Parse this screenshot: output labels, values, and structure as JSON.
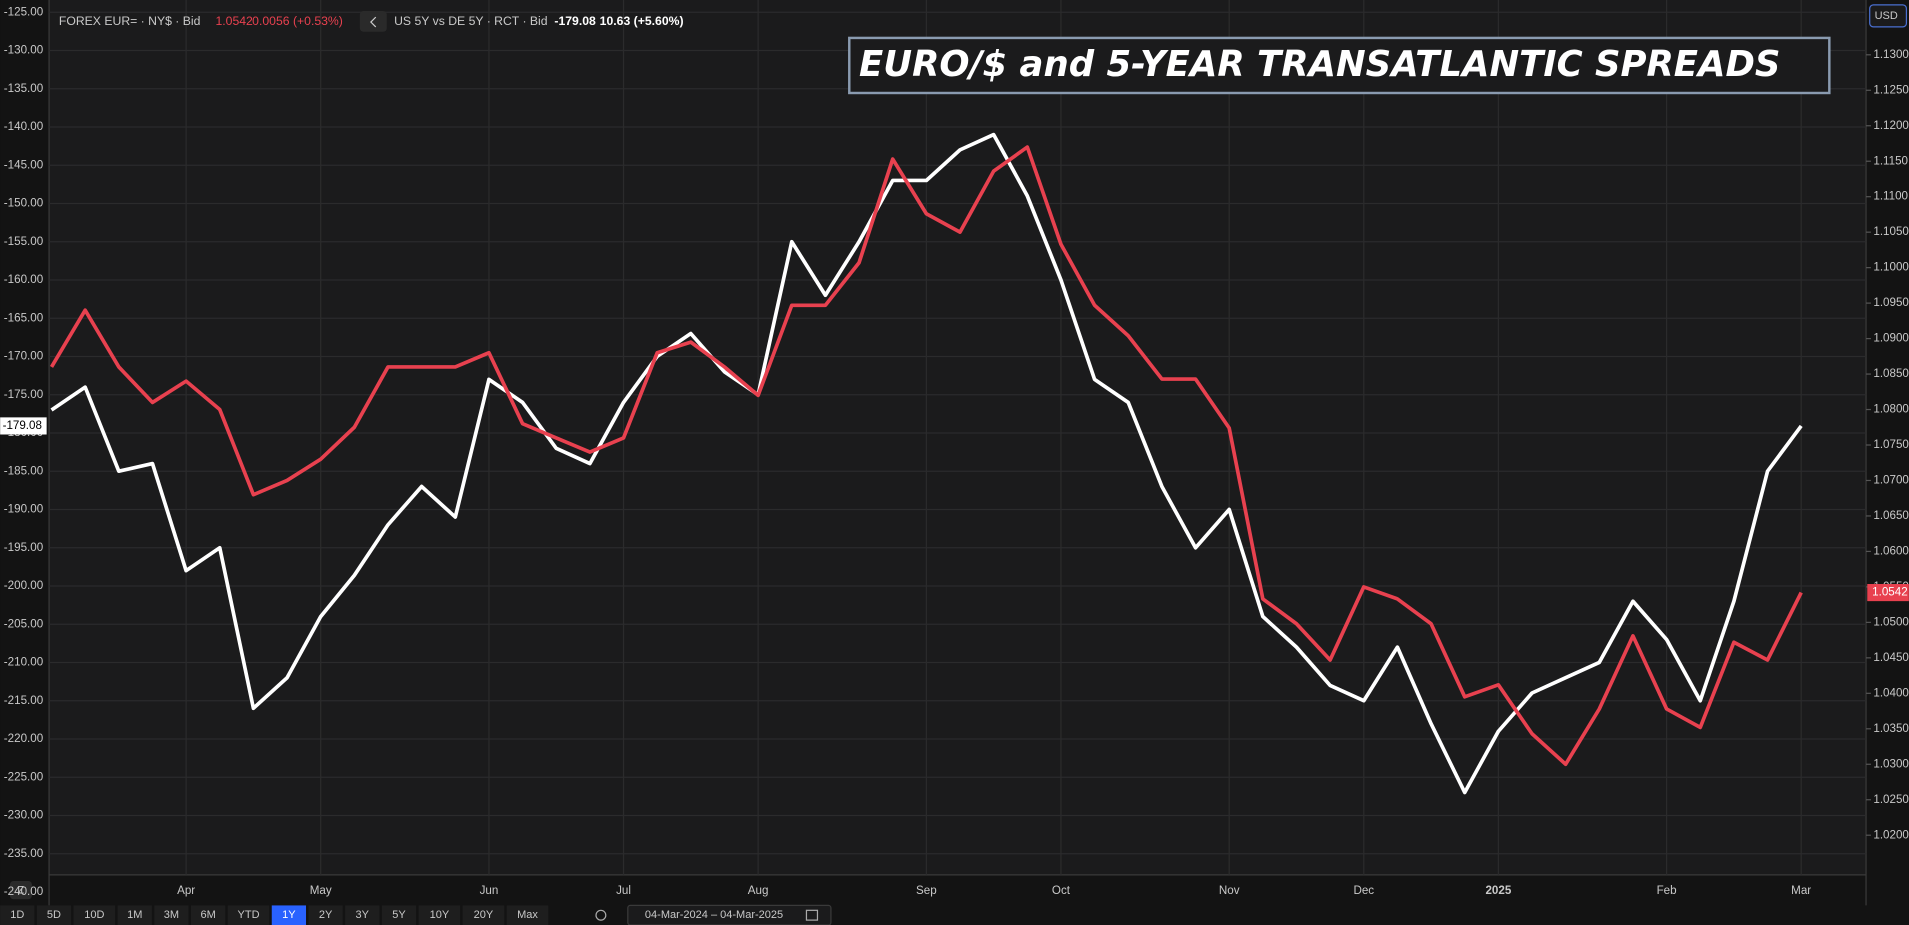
{
  "chart_data": {
    "type": "line",
    "title": "EURO/$ and 5-YEAR TRANSATLANTIC SPREADS",
    "header": [
      {
        "name": "FOREX EUR= · NY$ · Bid",
        "last": "1.0542",
        "change": "0.0056 (+0.53%)",
        "color": "#e8414f"
      },
      {
        "name": "US 5Y vs DE 5Y · RCT · Bid",
        "last": "-179.08",
        "change": "10.63 (+5.60%)",
        "color": "#ffffff"
      }
    ],
    "currency": "USD",
    "categories": [
      null,
      null,
      null,
      null,
      "Apr",
      null,
      null,
      null,
      "May",
      null,
      null,
      null,
      null,
      "Jun",
      null,
      null,
      null,
      "Jul",
      null,
      null,
      null,
      "Aug",
      null,
      null,
      null,
      null,
      "Sep",
      null,
      null,
      null,
      "Oct",
      null,
      null,
      null,
      null,
      "Nov",
      null,
      null,
      null,
      "Dec",
      null,
      null,
      null,
      "2025",
      null,
      null,
      null,
      null,
      "Feb",
      null,
      null,
      null,
      "Mar"
    ],
    "series": [
      {
        "name": "US 5Y vs DE 5Y",
        "color": "#ffffff",
        "axis": "y",
        "values": [
          -177,
          -174,
          -185,
          -184,
          -198,
          -195,
          -216,
          -212,
          -204,
          -198.6,
          -192,
          -187,
          -191,
          -173,
          -176,
          -182,
          -184,
          -176,
          -170,
          -167,
          -172,
          -175,
          -155,
          -162,
          -155,
          -147,
          -147,
          -143,
          -141,
          -149,
          -160,
          -173,
          -176,
          -187,
          -195,
          -190,
          -204,
          -208,
          -213,
          -215,
          -208,
          -218,
          -227,
          -219,
          -214,
          -212,
          -210,
          -202,
          -207,
          -215,
          -202,
          -185,
          -179.08
        ]
      },
      {
        "name": "EUR=",
        "color": "#e8414f",
        "axis": "y2",
        "values": [
          1.086,
          1.094,
          1.086,
          1.081,
          1.084,
          1.08,
          1.068,
          1.07,
          1.073,
          1.0775,
          1.086,
          1.086,
          1.086,
          1.088,
          1.078,
          1.076,
          1.074,
          1.076,
          1.088,
          1.0895,
          1.086,
          1.082,
          1.0947,
          1.0947,
          1.1007,
          1.1153,
          1.1076,
          1.105,
          1.1136,
          1.117,
          1.1033,
          1.0947,
          1.0904,
          1.0843,
          1.0843,
          1.0774,
          1.0533,
          1.0498,
          1.0447,
          1.055,
          1.0533,
          1.0498,
          1.0395,
          1.0412,
          1.0343,
          1.03,
          1.0378,
          1.0481,
          1.0378,
          1.0352,
          1.0472,
          1.0447,
          1.0542
        ]
      }
    ],
    "ylim": [
      -240,
      -125
    ],
    "yticks": [
      {
        "value": -125,
        "label": "-125.00"
      },
      {
        "value": -130,
        "label": "-130.00"
      },
      {
        "value": -135,
        "label": "-135.00"
      },
      {
        "value": -140,
        "label": "-140.00"
      },
      {
        "value": -145,
        "label": "-145.00"
      },
      {
        "value": -150,
        "label": "-150.00"
      },
      {
        "value": -155,
        "label": "-155.00"
      },
      {
        "value": -160,
        "label": "-160.00"
      },
      {
        "value": -165,
        "label": "-165.00"
      },
      {
        "value": -170,
        "label": "-170.00"
      },
      {
        "value": -175,
        "label": "-175.00"
      },
      {
        "value": -180,
        "label": "-180.00"
      },
      {
        "value": -185,
        "label": "-185.00"
      },
      {
        "value": -190,
        "label": "-190.00"
      },
      {
        "value": -195,
        "label": "-195.00"
      },
      {
        "value": -200,
        "label": "-200.00"
      },
      {
        "value": -205,
        "label": "-205.00"
      },
      {
        "value": -210,
        "label": "-210.00"
      },
      {
        "value": -215,
        "label": "-215.00"
      },
      {
        "value": -220,
        "label": "-220.00"
      },
      {
        "value": -225,
        "label": "-225.00"
      },
      {
        "value": -230,
        "label": "-230.00"
      },
      {
        "value": -235,
        "label": "-235.00"
      },
      {
        "value": -240,
        "label": "-240.00"
      }
    ],
    "y2lim": [
      1.012,
      1.136
    ],
    "y2ticks": [
      {
        "value": 1.02,
        "label": "1.0200"
      },
      {
        "value": 1.025,
        "label": "1.0250"
      },
      {
        "value": 1.03,
        "label": "1.0300"
      },
      {
        "value": 1.035,
        "label": "1.0350"
      },
      {
        "value": 1.04,
        "label": "1.0400"
      },
      {
        "value": 1.045,
        "label": "1.0450"
      },
      {
        "value": 1.05,
        "label": "1.0500"
      },
      {
        "value": 1.055,
        "label": "1.0550"
      },
      {
        "value": 1.06,
        "label": "1.0600"
      },
      {
        "value": 1.065,
        "label": "1.0650"
      },
      {
        "value": 1.07,
        "label": "1.0700"
      },
      {
        "value": 1.075,
        "label": "1.0750"
      },
      {
        "value": 1.08,
        "label": "1.0800"
      },
      {
        "value": 1.085,
        "label": "1.0850"
      },
      {
        "value": 1.09,
        "label": "1.0900"
      },
      {
        "value": 1.095,
        "label": "1.0950"
      },
      {
        "value": 1.1,
        "label": "1.1000"
      },
      {
        "value": 1.105,
        "label": "1.1050"
      },
      {
        "value": 1.11,
        "label": "1.1100"
      },
      {
        "value": 1.115,
        "label": "1.1150"
      },
      {
        "value": 1.12,
        "label": "1.1200"
      },
      {
        "value": 1.125,
        "label": "1.1250"
      },
      {
        "value": 1.13,
        "label": "1.1300"
      }
    ],
    "grid": true,
    "ranges": [
      {
        "label": "1D"
      },
      {
        "label": "5D"
      },
      {
        "label": "10D"
      },
      {
        "label": "1M"
      },
      {
        "label": "3M"
      },
      {
        "label": "6M"
      },
      {
        "label": "YTD"
      },
      {
        "label": "1Y",
        "selected": true
      },
      {
        "label": "2Y"
      },
      {
        "label": "3Y"
      },
      {
        "label": "5Y"
      },
      {
        "label": "10Y"
      },
      {
        "label": "20Y"
      },
      {
        "label": "Max"
      }
    ],
    "date_range": "04-Mar-2024 – 04-Mar-2025",
    "zoom": "Z"
  }
}
